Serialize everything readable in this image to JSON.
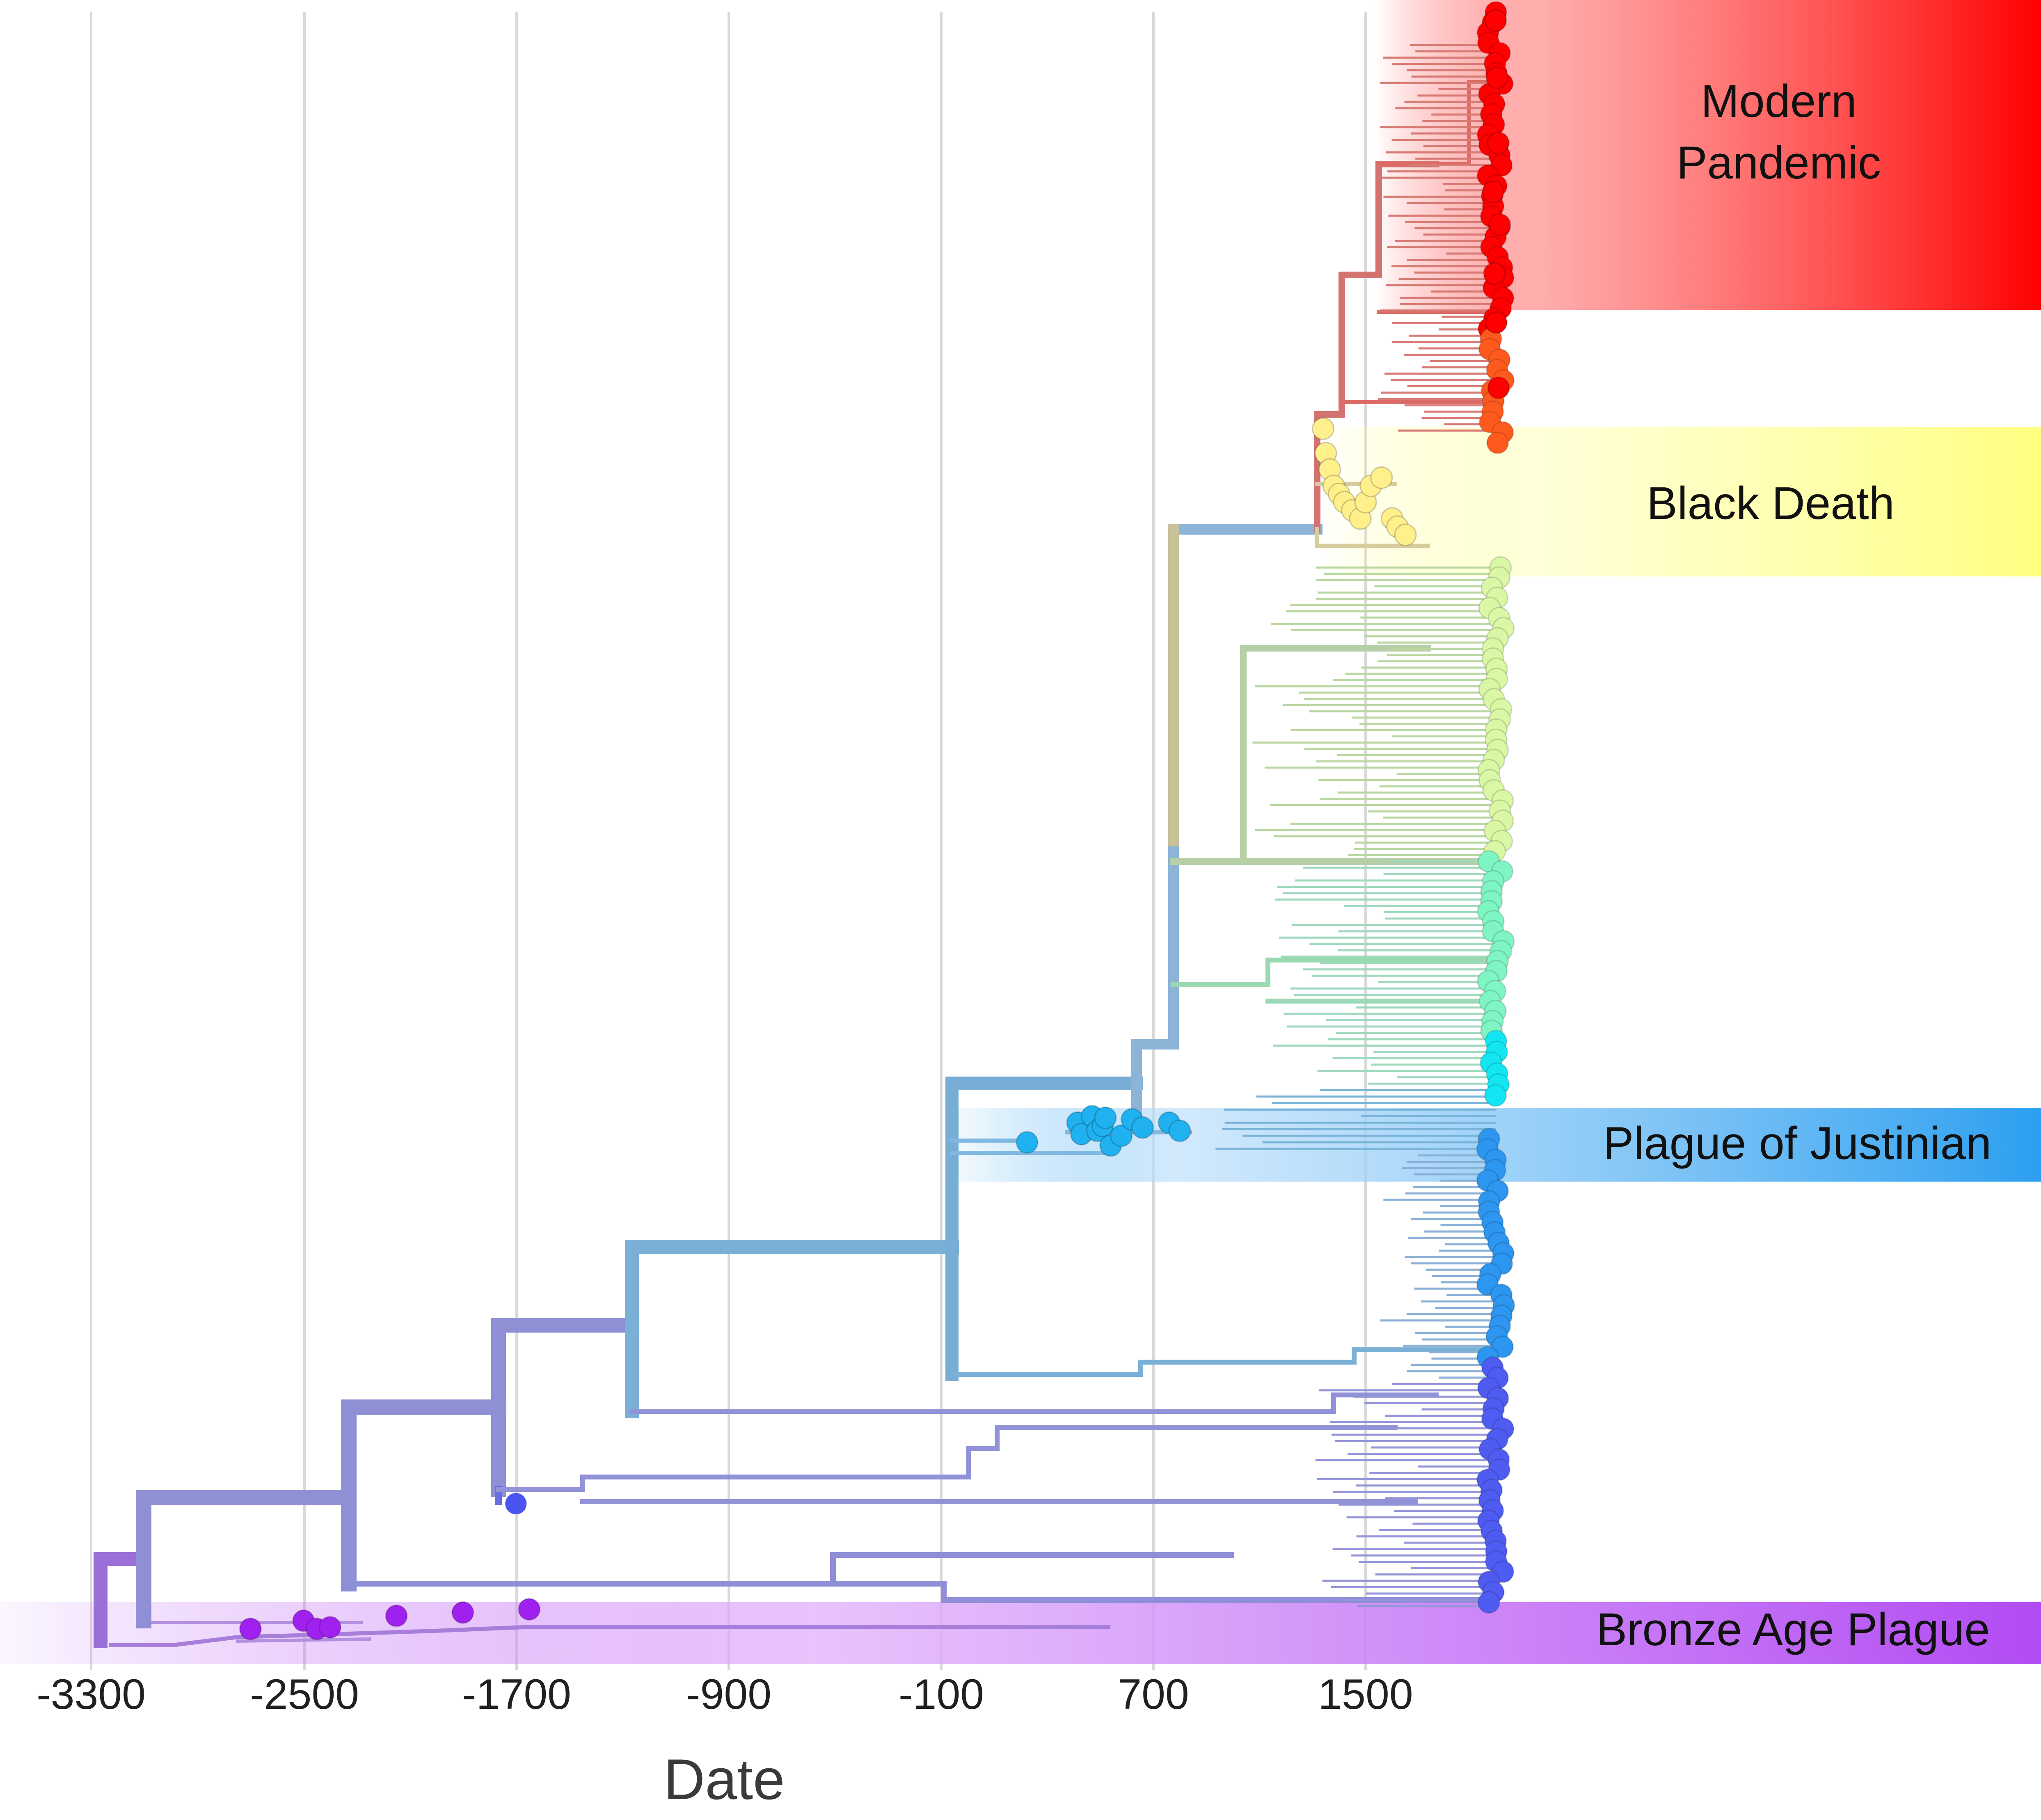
{
  "chart_data": {
    "type": "scatter",
    "subtype": "time-scaled phylogenetic tree",
    "xlabel": "Date",
    "ylabel": "",
    "xlim": [
      -3300,
      3300
    ],
    "x_ticks": [
      -3300,
      -2500,
      -1700,
      -900,
      -100,
      700,
      1500
    ],
    "x_tick_labels": [
      "-3300",
      "-2500",
      "-1700",
      "-900",
      "-100",
      "700",
      "1500"
    ],
    "grid": "vertical",
    "legend": "none",
    "pandemics": [
      {
        "label": "Modern Pandemic",
        "color": "#ff0000"
      },
      {
        "label": "Black Death",
        "color": "#ffff80"
      },
      {
        "label": "Plague of Justinian",
        "color": "#2c9ff0"
      },
      {
        "label": "Bronze Age Plague",
        "color": "#b24bf3"
      }
    ],
    "sample_groups": [
      {
        "era": "Modern Pandemic",
        "color": "#ff0000",
        "x": [
          1990,
          1995,
          2000,
          1980,
          2005,
          1985,
          1992,
          2001
        ],
        "rank": [
          0.005,
          0.04,
          0.08,
          0.11,
          0.13,
          0.16,
          0.19,
          0.23
        ]
      },
      {
        "era": "Black Death",
        "color": "#fff08c",
        "x": [
          1340,
          1350,
          1365,
          1380,
          1400,
          1420,
          1450,
          1480,
          1500,
          1520,
          1560,
          1600,
          1620,
          1650
        ],
        "rank": [
          0.255,
          0.27,
          0.28,
          0.29,
          0.295,
          0.3,
          0.305,
          0.31,
          0.3,
          0.29,
          0.285,
          0.31,
          0.315,
          0.32
        ]
      },
      {
        "era": "Plague of Justinian",
        "color": "#1fb1f0",
        "x": [
          225,
          415,
          430,
          470,
          490,
          510,
          520,
          540,
          580,
          620,
          660,
          760,
          800
        ],
        "rank": [
          0.692,
          0.68,
          0.687,
          0.676,
          0.685,
          0.682,
          0.677,
          0.694,
          0.688,
          0.678,
          0.683,
          0.68,
          0.685
        ]
      },
      {
        "era": "Bronze Age Plague",
        "color": "#a020f0",
        "x": [
          -2700,
          -2500,
          -2450,
          -2400,
          -2150,
          -1900,
          -1650
        ],
        "rank": [
          0.99,
          0.985,
          0.99,
          0.989,
          0.982,
          0.98,
          0.978
        ]
      }
    ],
    "root_date": -3300,
    "notes": []
  }
}
